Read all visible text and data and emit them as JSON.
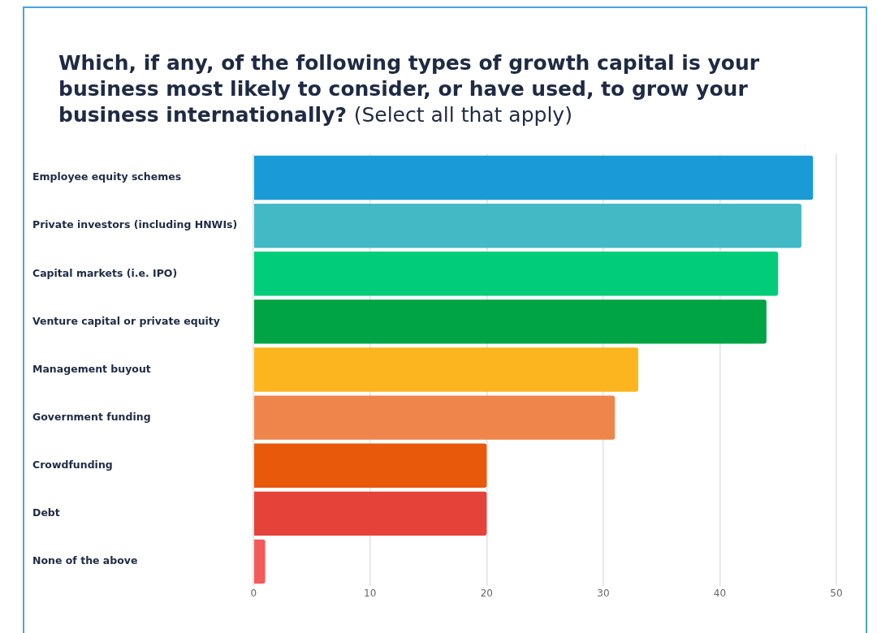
{
  "chart_data": {
    "type": "bar",
    "orientation": "horizontal",
    "title": "Which, if any, of the following types of growth capital is your business most likely to consider, or have used, to grow your business internationally?",
    "subtitle": "(Select all that apply)",
    "categories": [
      "Employee equity schemes",
      "Private investors (including HNWIs)",
      "Capital markets (i.e. IPO)",
      "Venture capital or private equity",
      "Management buyout",
      "Government funding",
      "Crowdfunding",
      "Debt",
      "None of the above"
    ],
    "values": [
      48,
      47,
      45,
      44,
      33,
      31,
      20,
      20,
      1
    ],
    "colors": [
      "#1a9bd7",
      "#43b9c6",
      "#00cc7a",
      "#00a444",
      "#fdb51f",
      "#ef854b",
      "#e8590c",
      "#e5423a",
      "#f55a5a"
    ],
    "xlim": [
      0,
      50
    ],
    "xticks": [
      0,
      10,
      20,
      30,
      40,
      50
    ],
    "grid": "x",
    "legend": false
  }
}
